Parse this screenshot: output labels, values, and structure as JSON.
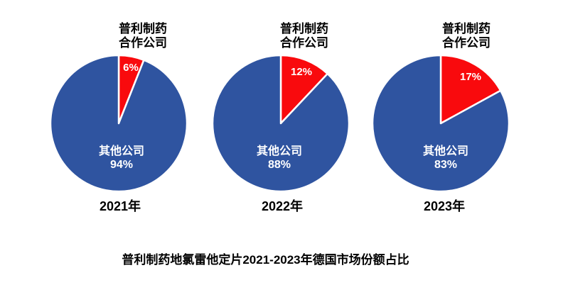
{
  "labels": {
    "callout_line1": "普利制药",
    "callout_line2": "合作公司",
    "others_name": "其他公司"
  },
  "chart_data": {
    "type": "pie",
    "title": "普利制药地氯雷他定片2021-2023年德国市场份额占比",
    "series_labels": [
      "普利制药合作公司",
      "其他公司"
    ],
    "colors": {
      "partner": "#f90a0d",
      "others": "#2f54a0"
    },
    "layout": {
      "slice_gap_color": "#ffffff",
      "start_angle_deg": 0,
      "direction": "clockwise"
    },
    "pies": [
      {
        "year": "2021年",
        "partner_pct": 6,
        "others_pct": 94,
        "partner_pct_label": "6%",
        "others_pct_label": "94%"
      },
      {
        "year": "2022年",
        "partner_pct": 12,
        "others_pct": 88,
        "partner_pct_label": "12%",
        "others_pct_label": "88%"
      },
      {
        "year": "2023年",
        "partner_pct": 17,
        "others_pct": 83,
        "partner_pct_label": "17%",
        "others_pct_label": "83%"
      }
    ]
  }
}
